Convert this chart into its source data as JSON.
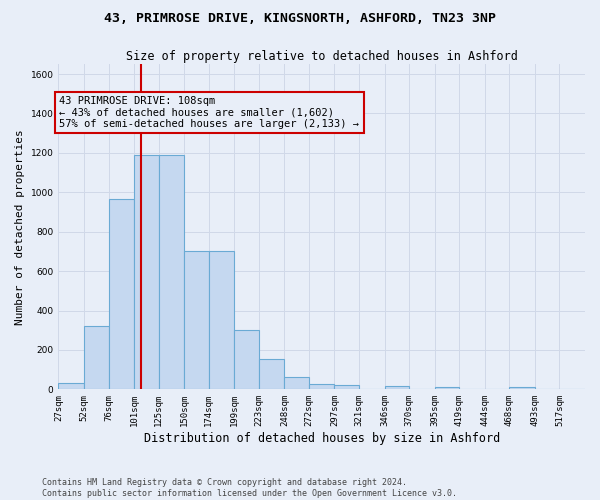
{
  "title_line1": "43, PRIMROSE DRIVE, KINGSNORTH, ASHFORD, TN23 3NP",
  "title_line2": "Size of property relative to detached houses in Ashford",
  "xlabel": "Distribution of detached houses by size in Ashford",
  "ylabel": "Number of detached properties",
  "footer": "Contains HM Land Registry data © Crown copyright and database right 2024.\nContains public sector information licensed under the Open Government Licence v3.0.",
  "bin_labels": [
    "27sqm",
    "52sqm",
    "76sqm",
    "101sqm",
    "125sqm",
    "150sqm",
    "174sqm",
    "199sqm",
    "223sqm",
    "248sqm",
    "272sqm",
    "297sqm",
    "321sqm",
    "346sqm",
    "370sqm",
    "395sqm",
    "419sqm",
    "444sqm",
    "468sqm",
    "493sqm",
    "517sqm"
  ],
  "bin_edges": [
    27,
    52,
    76,
    101,
    125,
    150,
    174,
    199,
    223,
    248,
    272,
    297,
    321,
    346,
    370,
    395,
    419,
    444,
    468,
    493,
    517,
    542
  ],
  "bar_values": [
    30,
    320,
    965,
    1190,
    1190,
    700,
    700,
    300,
    155,
    65,
    25,
    20,
    0,
    15,
    0,
    10,
    0,
    0,
    12,
    0,
    0
  ],
  "bar_color": "#c5d8f0",
  "bar_edge_color": "#6aaad4",
  "grid_color": "#d0d8e8",
  "annotation_box_color": "#cc0000",
  "property_line_x": 108,
  "annotation_text_line1": "43 PRIMROSE DRIVE: 108sqm",
  "annotation_text_line2": "← 43% of detached houses are smaller (1,602)",
  "annotation_text_line3": "57% of semi-detached houses are larger (2,133) →",
  "ylim": [
    0,
    1650
  ],
  "background_color": "#e8eef8",
  "title1_fontsize": 9.5,
  "title2_fontsize": 8.5,
  "ylabel_fontsize": 8,
  "xlabel_fontsize": 8.5,
  "tick_fontsize": 6.5,
  "footer_fontsize": 6
}
